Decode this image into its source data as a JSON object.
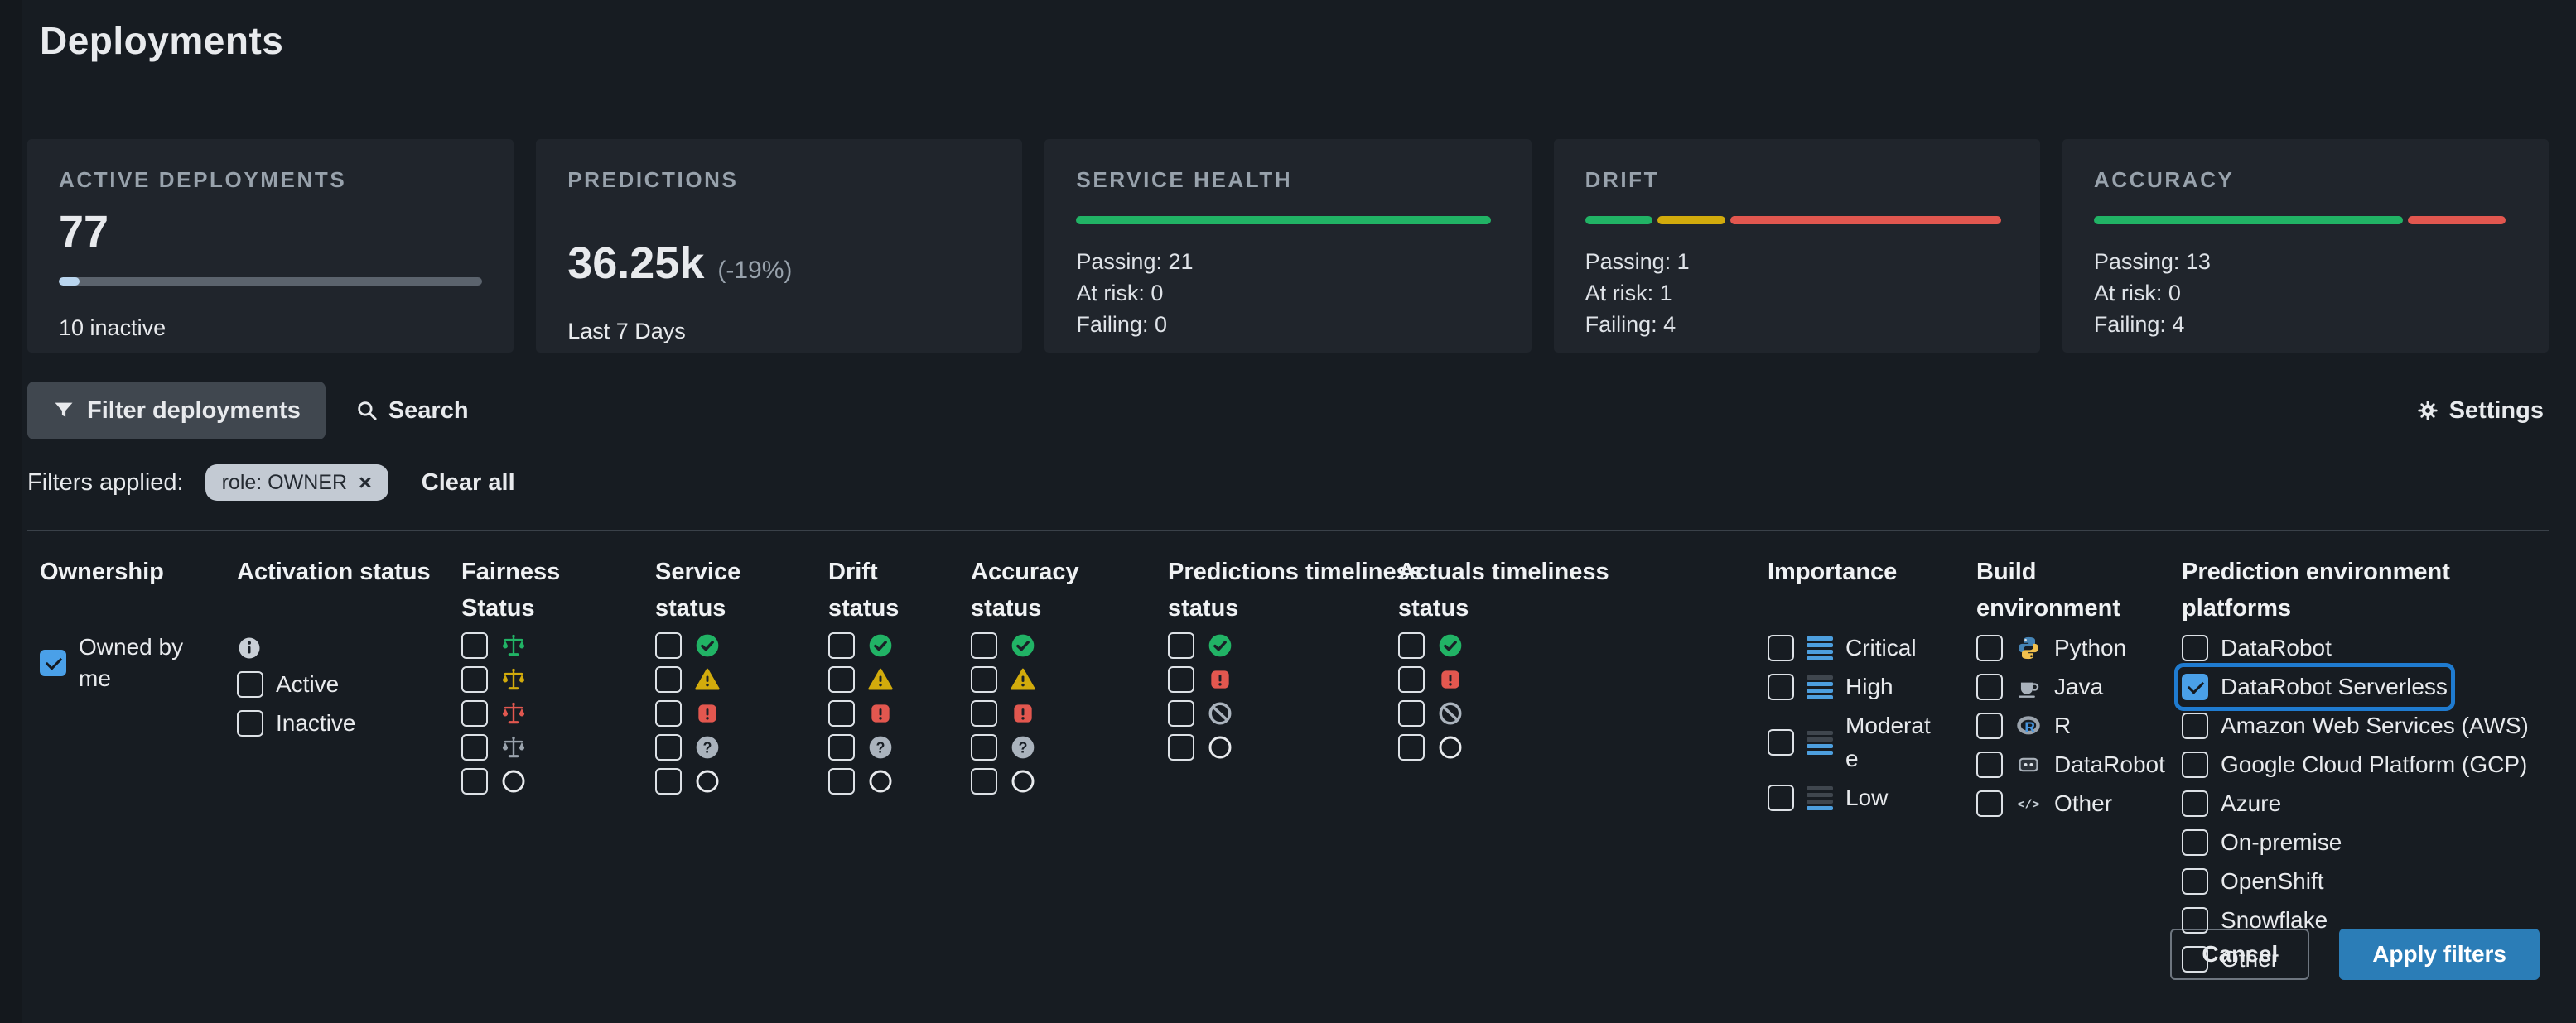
{
  "page": {
    "title": "Deployments"
  },
  "summary_cards": [
    {
      "id": "active-deployments",
      "label": "ACTIVE DEPLOYMENTS",
      "value": "77",
      "progress_pct": 4.8,
      "footnote": "10 inactive"
    },
    {
      "id": "predictions",
      "label": "PREDICTIONS",
      "value": "36.25k",
      "delta": "(-19%)",
      "footnote": "Last 7 Days"
    },
    {
      "id": "service-health",
      "label": "SERVICE HEALTH",
      "bar": [
        {
          "color": "green",
          "pct": 98
        }
      ],
      "stats": [
        "Passing: 21",
        "At risk: 0",
        "Failing: 0"
      ]
    },
    {
      "id": "drift",
      "label": "DRIFT",
      "bar": [
        {
          "color": "green",
          "pct": 16
        },
        {
          "color": "yellow",
          "pct": 16
        },
        {
          "color": "red",
          "pct": 64
        }
      ],
      "stats": [
        "Passing: 1",
        "At risk: 1",
        "Failing: 4"
      ]
    },
    {
      "id": "accuracy",
      "label": "ACCURACY",
      "bar": [
        {
          "color": "green",
          "pct": 73
        },
        {
          "color": "red",
          "pct": 23
        }
      ],
      "stats": [
        "Passing: 13",
        "At risk: 0",
        "Failing: 4"
      ]
    }
  ],
  "toolbar": {
    "filter_button": "Filter deployments",
    "search_label": "Search",
    "settings_label": "Settings"
  },
  "filters_applied": {
    "label": "Filters applied:",
    "chips": [
      {
        "label": "role: OWNER",
        "remove_icon": "×"
      }
    ],
    "clear_all": "Clear all"
  },
  "filter_panel": {
    "columns": [
      {
        "id": "ownership",
        "title": "Ownership",
        "options": [
          {
            "label": "Owned by me",
            "checked": true
          }
        ]
      },
      {
        "id": "activation-status",
        "title": "Activation status",
        "info_icon": true,
        "options": [
          {
            "label": "Active"
          },
          {
            "label": "Inactive"
          }
        ]
      },
      {
        "id": "fairness-status",
        "title": "Fairness Status",
        "options": [
          {
            "icon": "scale-green"
          },
          {
            "icon": "scale-yellow"
          },
          {
            "icon": "scale-red"
          },
          {
            "icon": "scale-gray"
          },
          {
            "icon": "empty-circle"
          }
        ]
      },
      {
        "id": "service-status",
        "title": "Service status",
        "options": [
          {
            "icon": "check-circle"
          },
          {
            "icon": "warn-triangle"
          },
          {
            "icon": "error-square"
          },
          {
            "icon": "question-circle"
          },
          {
            "icon": "empty-circle"
          }
        ]
      },
      {
        "id": "drift-status",
        "title": "Drift status",
        "options": [
          {
            "icon": "check-circle"
          },
          {
            "icon": "warn-triangle"
          },
          {
            "icon": "error-square"
          },
          {
            "icon": "question-circle"
          },
          {
            "icon": "empty-circle"
          }
        ]
      },
      {
        "id": "accuracy-status",
        "title": "Accuracy status",
        "options": [
          {
            "icon": "check-circle"
          },
          {
            "icon": "warn-triangle"
          },
          {
            "icon": "error-square"
          },
          {
            "icon": "question-circle"
          },
          {
            "icon": "empty-circle"
          }
        ]
      },
      {
        "id": "predictions-timeliness-status",
        "title": "Predictions timeliness status",
        "options": [
          {
            "icon": "check-circle"
          },
          {
            "icon": "error-square"
          },
          {
            "icon": "blocked-circle"
          },
          {
            "icon": "empty-circle"
          }
        ]
      },
      {
        "id": "actuals-timeliness-status",
        "title": "Actuals timeliness status",
        "options": [
          {
            "icon": "check-circle"
          },
          {
            "icon": "error-square"
          },
          {
            "icon": "blocked-circle"
          },
          {
            "icon": "empty-circle"
          }
        ]
      },
      {
        "id": "importance",
        "title": "Importance",
        "options": [
          {
            "icon": "bars-4",
            "label": "Critical"
          },
          {
            "icon": "bars-3",
            "label": "High"
          },
          {
            "icon": "bars-2",
            "label": "Moderate"
          },
          {
            "icon": "bars-1",
            "label": "Low"
          }
        ]
      },
      {
        "id": "build-environment",
        "title": "Build environment",
        "options": [
          {
            "icon": "python",
            "label": "Python"
          },
          {
            "icon": "java",
            "label": "Java"
          },
          {
            "icon": "r-lang",
            "label": "R"
          },
          {
            "icon": "datarobot",
            "label": "DataRobot"
          },
          {
            "icon": "code",
            "label": "Other"
          }
        ]
      },
      {
        "id": "prediction-environment-platforms",
        "title": "Prediction environment platforms",
        "options": [
          {
            "label": "DataRobot"
          },
          {
            "label": "DataRobot Serverless",
            "checked": true,
            "highlighted": true
          },
          {
            "label": "Amazon Web Services (AWS)"
          },
          {
            "label": "Google Cloud Platform (GCP)"
          },
          {
            "label": "Azure"
          },
          {
            "label": "On-premise"
          },
          {
            "label": "OpenShift"
          },
          {
            "label": "Snowflake"
          },
          {
            "label": "Other"
          }
        ]
      }
    ]
  },
  "panel_actions": {
    "cancel": "Cancel",
    "apply": "Apply filters"
  },
  "colors": {
    "page_bg": "#171c22",
    "card_bg": "#20252c",
    "text_primary": "#e8eaed",
    "text_muted": "#98a2ac",
    "green": "#21b365",
    "yellow": "#d2ab0c",
    "red": "#e2574f",
    "blue_accent": "#2b7db7",
    "checkbox_blue": "#4aa0e8",
    "focus_blue": "#1f7bd0",
    "importance_blue": "#4d9fdf",
    "icon_gray": "#aab3bd",
    "chip_bg": "#c3cad3",
    "track_gray": "#5b636d",
    "progress_fill": "#b9d5ee",
    "button_gray_bg": "#40474f",
    "divider": "#3a4149"
  }
}
